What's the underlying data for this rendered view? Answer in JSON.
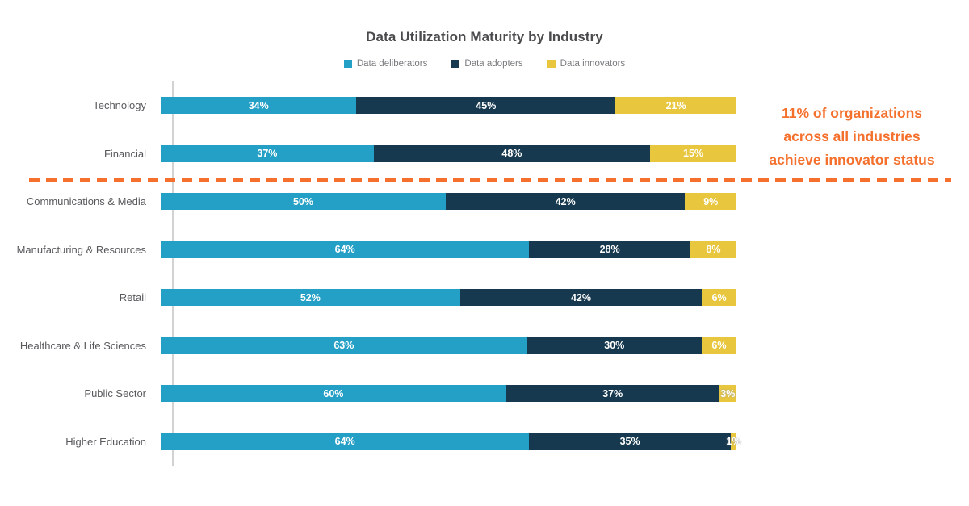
{
  "title": "Data Utilization Maturity by Industry",
  "annotation": {
    "lines": [
      "11% of organizations",
      "across all industries",
      "achieve innovator status"
    ],
    "color": "#f4702c"
  },
  "divider": {
    "color": "#f4702c",
    "style": "dashed"
  },
  "chart_data": {
    "type": "bar",
    "orientation": "horizontal",
    "stacked": true,
    "title": "Data Utilization Maturity by Industry",
    "categories": [
      "Technology",
      "Financial",
      "Communications & Media",
      "Manufacturing & Resources",
      "Retail",
      "Healthcare & Life Sciences",
      "Public Sector",
      "Higher Education"
    ],
    "series": [
      {
        "name": "Data deliberators",
        "color": "#249fc5",
        "values": [
          34,
          37,
          50,
          64,
          52,
          63,
          60,
          64
        ]
      },
      {
        "name": "Data adopters",
        "color": "#17394f",
        "values": [
          45,
          48,
          42,
          28,
          42,
          30,
          37,
          35
        ]
      },
      {
        "name": "Data innovators",
        "color": "#e8c63e",
        "values": [
          21,
          15,
          9,
          8,
          6,
          6,
          3,
          1
        ]
      }
    ],
    "value_suffix": "%",
    "xlim": [
      0,
      100
    ],
    "grid": false,
    "legend_position": "top",
    "divider_after_category": "Financial",
    "annotation_text": "11% of organizations across all industries achieve innovator status"
  }
}
